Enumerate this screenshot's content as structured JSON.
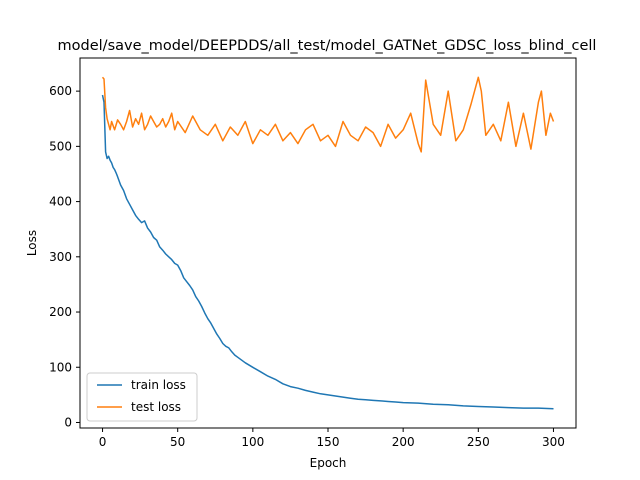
{
  "chart_data": {
    "type": "line",
    "title": "model/save_model/DEEPDDS/all_test/model_GATNet_GDSC_loss_blind_cell",
    "xlabel": "Epoch",
    "ylabel": "Loss",
    "xlim": [
      -15,
      315
    ],
    "ylim": [
      -10,
      660
    ],
    "xticks": [
      0,
      50,
      100,
      150,
      200,
      250,
      300
    ],
    "yticks": [
      0,
      100,
      200,
      300,
      400,
      500,
      600
    ],
    "grid": false,
    "legend_position": "lower-left",
    "series": [
      {
        "name": "train loss",
        "color": "#1f77b4",
        "x": [
          0,
          1,
          2,
          3,
          4,
          5,
          6,
          7,
          8,
          9,
          10,
          12,
          14,
          16,
          18,
          20,
          22,
          24,
          26,
          28,
          30,
          32,
          34,
          36,
          38,
          40,
          42,
          44,
          46,
          48,
          50,
          52,
          54,
          56,
          58,
          60,
          62,
          64,
          66,
          68,
          70,
          72,
          74,
          76,
          78,
          80,
          82,
          84,
          86,
          88,
          90,
          95,
          100,
          105,
          110,
          115,
          120,
          125,
          130,
          135,
          140,
          145,
          150,
          155,
          160,
          165,
          170,
          175,
          180,
          185,
          190,
          195,
          200,
          210,
          220,
          230,
          240,
          250,
          260,
          270,
          280,
          290,
          300
        ],
        "y": [
          593,
          580,
          490,
          478,
          482,
          475,
          470,
          462,
          458,
          452,
          445,
          430,
          420,
          405,
          395,
          385,
          375,
          368,
          362,
          365,
          352,
          345,
          335,
          330,
          318,
          312,
          305,
          300,
          295,
          288,
          285,
          275,
          262,
          255,
          248,
          240,
          228,
          220,
          210,
          198,
          188,
          180,
          170,
          160,
          152,
          143,
          138,
          135,
          128,
          122,
          118,
          108,
          100,
          92,
          84,
          78,
          70,
          65,
          62,
          58,
          55,
          52,
          50,
          48,
          46,
          44,
          42,
          41,
          40,
          39,
          38,
          37,
          36,
          35,
          33,
          32,
          30,
          29,
          28,
          27,
          26,
          26,
          25
        ]
      },
      {
        "name": "test loss",
        "color": "#ff7f0e",
        "x": [
          0,
          1,
          2,
          3,
          4,
          5,
          6,
          8,
          10,
          12,
          14,
          16,
          18,
          20,
          22,
          24,
          26,
          28,
          30,
          32,
          34,
          36,
          38,
          40,
          42,
          44,
          46,
          48,
          50,
          55,
          60,
          65,
          70,
          75,
          80,
          85,
          90,
          95,
          100,
          105,
          110,
          115,
          120,
          125,
          130,
          135,
          140,
          145,
          150,
          155,
          160,
          165,
          170,
          175,
          180,
          185,
          190,
          195,
          200,
          205,
          210,
          212,
          215,
          220,
          225,
          230,
          235,
          240,
          245,
          250,
          252,
          255,
          260,
          265,
          270,
          275,
          280,
          285,
          290,
          292,
          295,
          298,
          300
        ],
        "y": [
          625,
          622,
          570,
          550,
          540,
          530,
          545,
          530,
          548,
          540,
          530,
          545,
          565,
          535,
          550,
          540,
          560,
          530,
          540,
          555,
          545,
          535,
          540,
          550,
          535,
          545,
          560,
          530,
          545,
          525,
          555,
          530,
          520,
          540,
          510,
          535,
          520,
          545,
          505,
          530,
          520,
          540,
          510,
          525,
          505,
          530,
          540,
          510,
          520,
          500,
          545,
          520,
          510,
          535,
          525,
          500,
          540,
          515,
          530,
          560,
          505,
          490,
          620,
          540,
          520,
          600,
          510,
          530,
          575,
          625,
          600,
          520,
          540,
          510,
          580,
          500,
          560,
          495,
          580,
          600,
          520,
          560,
          545
        ]
      }
    ]
  }
}
